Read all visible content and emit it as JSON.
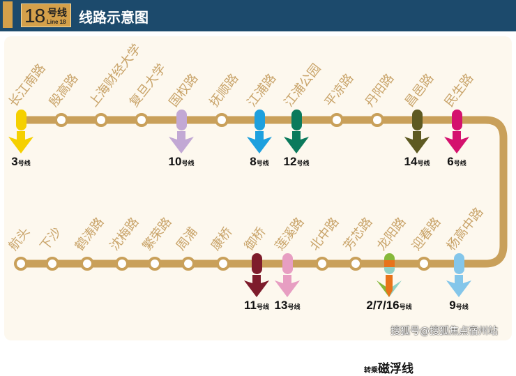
{
  "header": {
    "line_number": "18",
    "line_suffix": "号线",
    "line_en": "Line 18",
    "title": "线路示意图"
  },
  "colors": {
    "track": "#c9a05a",
    "header": "#1c4a6c",
    "label": "#c9a46a"
  },
  "stations_top": [
    {
      "name": "长江南路",
      "transfer": {
        "line": "3",
        "colors": [
          "#f5d000"
        ]
      }
    },
    {
      "name": "殷高路"
    },
    {
      "name": "上海财经大学"
    },
    {
      "name": "复旦大学"
    },
    {
      "name": "国权路",
      "transfer": {
        "line": "10",
        "colors": [
          "#c2a8d4"
        ]
      }
    },
    {
      "name": "抚顺路"
    },
    {
      "name": "江浦路",
      "transfer": {
        "line": "8",
        "colors": [
          "#1ea0de"
        ]
      }
    },
    {
      "name": "江浦公园",
      "transfer": {
        "line": "12",
        "colors": [
          "#0b7a5c"
        ]
      }
    },
    {
      "name": "平凉路"
    },
    {
      "name": "丹阳路"
    },
    {
      "name": "昌邑路",
      "transfer": {
        "line": "14",
        "colors": [
          "#5e5a22"
        ]
      }
    },
    {
      "name": "民生路",
      "transfer": {
        "line": "6",
        "colors": [
          "#d4126e"
        ]
      }
    }
  ],
  "stations_bottom": [
    {
      "name": "航头"
    },
    {
      "name": "下沙"
    },
    {
      "name": "鹤涛路"
    },
    {
      "name": "沈梅路"
    },
    {
      "name": "繁荣路"
    },
    {
      "name": "周浦"
    },
    {
      "name": "康桥"
    },
    {
      "name": "御桥",
      "transfer": {
        "line": "11",
        "colors": [
          "#7e1c2c"
        ]
      }
    },
    {
      "name": "莲溪路",
      "transfer": {
        "line": "13",
        "colors": [
          "#e79ec2"
        ]
      }
    },
    {
      "name": "北中路"
    },
    {
      "name": "芳芯路"
    },
    {
      "name": "龙阳路",
      "transfer": {
        "line": "2/7/16",
        "colors": [
          "#86b83a",
          "#e8731a",
          "#8fd0c4"
        ]
      }
    },
    {
      "name": "迎春路"
    },
    {
      "name": "杨高中路",
      "transfer": {
        "line": "9",
        "colors": [
          "#84c6ea"
        ]
      }
    }
  ],
  "line_suffix_small": "号线",
  "transfer_note": {
    "prefix": "转乘",
    "name": "磁浮线"
  },
  "watermark": "搜狐号@搜狐焦点宿州站"
}
